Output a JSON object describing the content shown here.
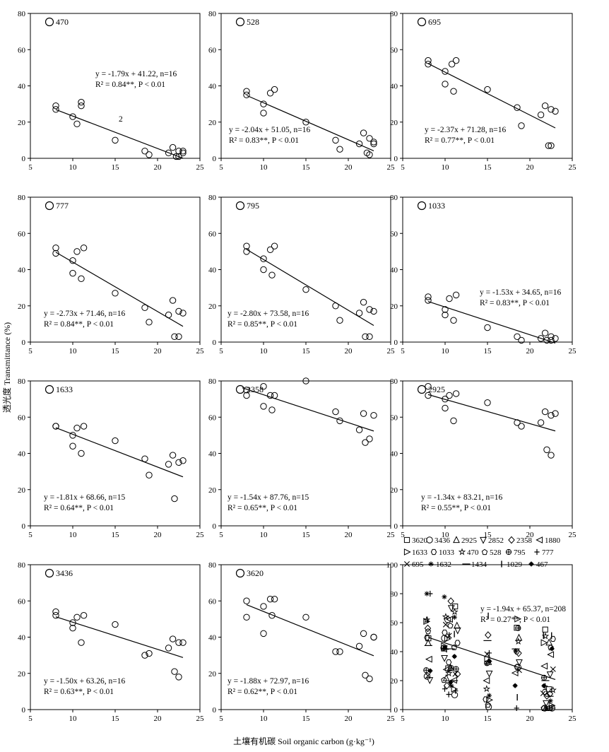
{
  "figure": {
    "ylabel": "透光度 Transmittance (%)",
    "xlabel": "土壤有机碳 Soil organic carbon (g·kg⁻¹)"
  },
  "chart_data": [
    {
      "type": "scatter",
      "label": "470",
      "xlim": [
        5,
        25
      ],
      "ylim": [
        0,
        80
      ],
      "xticks": [
        5,
        10,
        15,
        20,
        25
      ],
      "yticks": [
        0,
        20,
        40,
        60,
        80
      ],
      "x": [
        8,
        8,
        10,
        10.5,
        11,
        11,
        15,
        18.5,
        19,
        21.3,
        21.8,
        22.2,
        22.5,
        22.5,
        23,
        23
      ],
      "y": [
        29,
        27,
        23,
        19,
        29,
        31,
        10,
        4,
        2,
        3,
        6,
        1,
        4,
        1,
        4,
        3
      ],
      "fit": {
        "slope": -1.79,
        "intercept": 41.22,
        "x_range": [
          8,
          23
        ]
      },
      "equation": "y = -1.79x + 41.22, n=16",
      "r2": "R² = 0.84**, P < 0.01",
      "note": "2"
    },
    {
      "type": "scatter",
      "label": "528",
      "xlim": [
        5,
        25
      ],
      "ylim": [
        0,
        80
      ],
      "xticks": [
        5,
        10,
        15,
        20,
        25
      ],
      "yticks": [
        0,
        20,
        40,
        60,
        80
      ],
      "x": [
        8,
        8,
        10,
        10,
        10.8,
        11.3,
        15,
        18.5,
        19,
        21.3,
        21.8,
        22.2,
        22.5,
        22.5,
        23,
        23
      ],
      "y": [
        35,
        37,
        30,
        25,
        36,
        38,
        20,
        10,
        5,
        8,
        14,
        3,
        2,
        11,
        8,
        9
      ],
      "fit": {
        "slope": -2.04,
        "intercept": 51.05,
        "x_range": [
          8,
          23
        ]
      },
      "equation": "y = -2.04x + 51.05, n=16",
      "r2": "R² = 0.83**, P < 0.01"
    },
    {
      "type": "scatter",
      "label": "695",
      "xlim": [
        5,
        25
      ],
      "ylim": [
        0,
        80
      ],
      "xticks": [
        5,
        10,
        15,
        20,
        25
      ],
      "yticks": [
        0,
        20,
        40,
        60,
        80
      ],
      "x": [
        8,
        8,
        10,
        10,
        10.8,
        11.3,
        11,
        15,
        18.5,
        19,
        21.3,
        21.8,
        22.2,
        22.5,
        22.5,
        23
      ],
      "y": [
        52,
        54,
        48,
        41,
        52,
        54,
        37,
        38,
        28,
        18,
        24,
        29,
        7,
        27,
        7,
        26
      ],
      "fit": {
        "slope": -2.37,
        "intercept": 71.28,
        "x_range": [
          8,
          23
        ]
      },
      "equation": "y = -2.37x + 71.28, n=16",
      "r2": "R² = 0.77**, P < 0.01"
    },
    {
      "type": "scatter",
      "label": "777",
      "xlim": [
        5,
        25
      ],
      "ylim": [
        0,
        80
      ],
      "xticks": [
        5,
        10,
        15,
        20,
        25
      ],
      "yticks": [
        0,
        20,
        40,
        60,
        80
      ],
      "x": [
        8,
        8,
        10,
        10,
        10.5,
        11.3,
        11,
        15,
        18.5,
        19,
        21.3,
        21.8,
        22,
        22.5,
        22.5,
        23
      ],
      "y": [
        52,
        49,
        45,
        38,
        50,
        52,
        35,
        27,
        19,
        11,
        15,
        23,
        3,
        17,
        3,
        16
      ],
      "fit": {
        "slope": -2.73,
        "intercept": 71.46,
        "x_range": [
          8,
          23
        ]
      },
      "equation": "y = -2.73x + 71.46, n=16",
      "r2": "R² = 0.84**, P < 0.01"
    },
    {
      "type": "scatter",
      "label": "795",
      "xlim": [
        5,
        25
      ],
      "ylim": [
        0,
        80
      ],
      "xticks": [
        5,
        10,
        15,
        20,
        25
      ],
      "yticks": [
        0,
        20,
        40,
        60,
        80
      ],
      "x": [
        8,
        8,
        10,
        10,
        10.8,
        11.3,
        11,
        15,
        18.5,
        19,
        21.3,
        21.8,
        22,
        22.5,
        22.5,
        23
      ],
      "y": [
        53,
        50,
        46,
        40,
        51,
        53,
        37,
        29,
        20,
        12,
        16,
        22,
        3,
        18,
        3,
        17
      ],
      "fit": {
        "slope": -2.8,
        "intercept": 73.58,
        "x_range": [
          8,
          23
        ]
      },
      "equation": "y = -2.80x + 73.58, n=16",
      "r2": "R² = 0.85**, P < 0.01"
    },
    {
      "type": "scatter",
      "label": "1033",
      "xlim": [
        5,
        25
      ],
      "ylim": [
        0,
        80
      ],
      "xticks": [
        5,
        10,
        15,
        20,
        25
      ],
      "yticks": [
        0,
        20,
        40,
        60,
        80
      ],
      "x": [
        8,
        8,
        10,
        10,
        10.5,
        11.3,
        11,
        15,
        18.5,
        19,
        21.3,
        21.8,
        22,
        22.5,
        22.5,
        23
      ],
      "y": [
        25,
        23,
        18,
        15,
        24,
        26,
        12,
        8,
        3,
        1,
        2,
        5,
        1,
        3,
        1,
        2
      ],
      "fit": {
        "slope": -1.53,
        "intercept": 34.65,
        "x_range": [
          8,
          23
        ]
      },
      "equation": "y = -1.53x + 34.65, n=16",
      "r2": "R² = 0.83**, P < 0.01"
    },
    {
      "type": "scatter",
      "label": "1633",
      "xlim": [
        5,
        25
      ],
      "ylim": [
        0,
        80
      ],
      "xticks": [
        5,
        10,
        15,
        20,
        25
      ],
      "yticks": [
        0,
        20,
        40,
        60,
        80
      ],
      "x": [
        8,
        8,
        10,
        10,
        10.5,
        11.3,
        11,
        15,
        18.5,
        19,
        21.3,
        21.8,
        22,
        22.5,
        23
      ],
      "y": [
        55,
        55,
        50,
        44,
        54,
        55,
        40,
        47,
        37,
        28,
        34,
        39,
        15,
        35,
        36
      ],
      "fit": {
        "slope": -1.81,
        "intercept": 68.66,
        "x_range": [
          8,
          23
        ]
      },
      "equation": "y = -1.81x + 68.66, n=15",
      "r2": "R² = 0.64**, P < 0.01"
    },
    {
      "type": "scatter",
      "label": "2358",
      "xlim": [
        5,
        25
      ],
      "ylim": [
        0,
        80
      ],
      "xticks": [
        5,
        10,
        15,
        20,
        25
      ],
      "yticks": [
        0,
        20,
        40,
        60,
        80
      ],
      "x": [
        8,
        8,
        10,
        10,
        10.8,
        11.3,
        11,
        15,
        18.5,
        19,
        21.3,
        21.8,
        22,
        22.5,
        23
      ],
      "y": [
        72,
        75,
        77,
        66,
        72,
        72,
        64,
        80,
        63,
        58,
        53,
        62,
        46,
        48,
        61
      ],
      "fit": {
        "slope": -1.54,
        "intercept": 87.76,
        "x_range": [
          7.5,
          23
        ]
      },
      "equation": "y = -1.54x + 87.76, n=15",
      "r2": "R² = 0.65**, P < 0.01"
    },
    {
      "type": "scatter",
      "label": "2925",
      "xlim": [
        5,
        25
      ],
      "ylim": [
        0,
        80
      ],
      "xticks": [
        5,
        10,
        15,
        20,
        25
      ],
      "yticks": [
        0,
        20,
        40,
        60,
        80
      ],
      "x": [
        8,
        8,
        10,
        10,
        10.5,
        11.3,
        11,
        15,
        18.5,
        19,
        21.3,
        21.8,
        22,
        22.5,
        22.5,
        23
      ],
      "y": [
        72,
        77,
        70,
        65,
        72,
        73,
        58,
        68,
        57,
        55,
        57,
        63,
        42,
        61,
        39,
        62
      ],
      "fit": {
        "slope": -1.34,
        "intercept": 83.21,
        "x_range": [
          8,
          23
        ]
      },
      "equation": "y = -1.34x + 83.21, n=16",
      "r2": "R² = 0.55**, P < 0.01"
    },
    {
      "type": "scatter",
      "label": "3436",
      "xlim": [
        5,
        25
      ],
      "ylim": [
        0,
        80
      ],
      "xticks": [
        5,
        10,
        15,
        20,
        25
      ],
      "yticks": [
        0,
        20,
        40,
        60,
        80
      ],
      "x": [
        8,
        8,
        10,
        10,
        10.5,
        11.3,
        11,
        15,
        18.5,
        19,
        21.3,
        21.8,
        22,
        22.5,
        22.5,
        23
      ],
      "y": [
        52,
        54,
        48,
        45,
        51,
        52,
        37,
        47,
        30,
        31,
        34,
        39,
        21,
        37,
        18,
        37
      ],
      "fit": {
        "slope": -1.5,
        "intercept": 63.26,
        "x_range": [
          8,
          23
        ]
      },
      "equation": "y = -1.50x + 63.26, n=16",
      "r2": "R² = 0.63**, P < 0.01"
    },
    {
      "type": "scatter",
      "label": "3620",
      "xlim": [
        5,
        25
      ],
      "ylim": [
        0,
        80
      ],
      "xticks": [
        5,
        10,
        15,
        20,
        25
      ],
      "yticks": [
        0,
        20,
        40,
        60,
        80
      ],
      "x": [
        8,
        8,
        10,
        10,
        10.8,
        11.3,
        11,
        15,
        18.5,
        19,
        21.3,
        21.8,
        22,
        22.5,
        23,
        23
      ],
      "y": [
        60,
        51,
        57,
        42,
        61,
        61,
        52,
        51,
        32,
        32,
        35,
        42,
        19,
        17,
        40,
        40
      ],
      "fit": {
        "slope": -1.88,
        "intercept": 72.97,
        "x_range": [
          8,
          23
        ]
      },
      "equation": "y = -1.88x + 72.97, n=16",
      "r2": "R² = 0.62**, P < 0.01"
    },
    {
      "type": "scatter",
      "label": "",
      "xlim": [
        5,
        25
      ],
      "ylim": [
        0,
        100
      ],
      "xticks": [
        5,
        10,
        15,
        20,
        25
      ],
      "yticks": [
        0,
        20,
        40,
        60,
        80,
        100
      ],
      "legend": [
        "3620",
        "3436",
        "2925",
        "2852",
        "2358",
        "1880",
        "1633",
        "1033",
        "470",
        "528",
        "795",
        "777",
        "695",
        "1632",
        "1434",
        "1029",
        "467"
      ],
      "fit": {
        "slope": -1.94,
        "intercept": 65.37,
        "x_range": [
          8,
          23
        ]
      },
      "equation": "y = -1.94x + 65.37, n=208",
      "r2": "R² = 0.27**, P < 0.01",
      "x_levels": [
        8,
        10,
        10.5,
        11.3,
        15,
        18.5,
        21.8,
        22.5
      ]
    }
  ]
}
